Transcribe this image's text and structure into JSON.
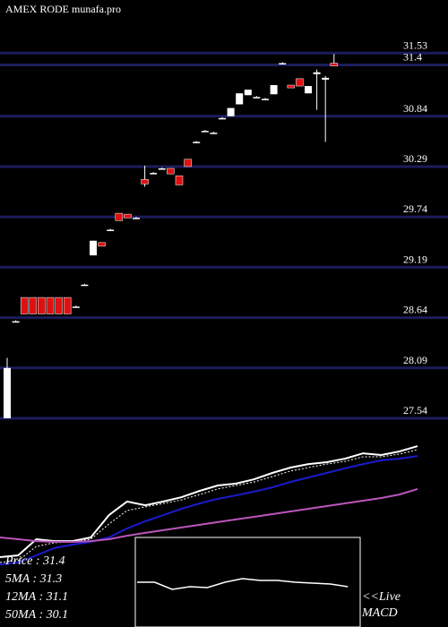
{
  "chart_data": [
    {
      "type": "candlestick",
      "title": "AMEX  RODE munafa.pro",
      "ylim": [
        27.53,
        32.11
      ],
      "yticks": [
        31.53,
        31.4,
        30.84,
        30.29,
        29.74,
        29.19,
        28.64,
        28.09,
        27.54
      ],
      "grid": true,
      "up_color": "#ffffff",
      "down_color": "#dd1111",
      "grid_color": "#1c1c5c",
      "open": [
        27.54,
        28.6,
        28.86,
        28.86,
        28.86,
        28.86,
        28.86,
        28.86,
        28.76,
        29.0,
        29.32,
        29.46,
        29.6,
        29.78,
        29.77,
        29.73,
        30.15,
        30.22,
        30.27,
        30.27,
        30.19,
        30.37,
        30.56,
        30.68,
        30.66,
        30.82,
        30.84,
        30.97,
        31.07,
        31.05,
        31.03,
        31.08,
        31.42,
        31.18,
        31.25,
        31.09,
        31.3,
        31.24,
        31.42
      ],
      "high": [
        28.2,
        28.61,
        28.86,
        28.86,
        28.86,
        28.86,
        28.86,
        28.86,
        28.77,
        29.01,
        29.48,
        29.46,
        29.61,
        29.78,
        29.77,
        29.74,
        30.3,
        30.23,
        30.28,
        30.27,
        30.19,
        30.37,
        30.57,
        30.69,
        30.67,
        30.83,
        30.93,
        31.09,
        31.13,
        31.06,
        31.04,
        31.18,
        31.43,
        31.18,
        31.25,
        31.17,
        31.35,
        31.28,
        31.52
      ],
      "low": [
        27.54,
        28.59,
        28.68,
        28.68,
        28.68,
        28.68,
        28.68,
        28.68,
        28.75,
        28.99,
        29.32,
        29.42,
        29.59,
        29.7,
        29.73,
        29.72,
        30.07,
        30.21,
        30.26,
        30.21,
        30.09,
        30.29,
        30.55,
        30.67,
        30.65,
        30.81,
        30.84,
        30.97,
        31.07,
        31.04,
        31.02,
        31.08,
        31.41,
        31.15,
        31.17,
        31.09,
        30.91,
        30.56,
        31.39
      ],
      "close": [
        28.09,
        28.6,
        28.68,
        28.68,
        28.68,
        28.68,
        28.68,
        28.68,
        28.76,
        29.0,
        29.48,
        29.42,
        29.6,
        29.7,
        29.73,
        29.73,
        30.1,
        30.22,
        30.27,
        30.21,
        30.09,
        30.29,
        30.56,
        30.68,
        30.66,
        30.82,
        30.93,
        31.09,
        31.13,
        31.05,
        31.03,
        31.18,
        31.42,
        31.15,
        31.17,
        31.17,
        31.32,
        31.26,
        31.39
      ]
    },
    {
      "type": "line",
      "ylim": [
        0,
        100
      ],
      "legend": [
        "Price   : 31.4",
        "5MA   : 31.3",
        "12MA : 31.1",
        "50MA : 30.1"
      ],
      "series": [
        {
          "color": "#ffffff",
          "style": "solid",
          "values": [
            33.9,
            34.8,
            42.6,
            41.7,
            41.7,
            43.5,
            54.3,
            60.9,
            59.1,
            60.9,
            63.0,
            66.1,
            68.7,
            69.6,
            71.7,
            74.8,
            77.4,
            79.1,
            80.0,
            81.7,
            84.3,
            83.5,
            85.2,
            87.8
          ]
        },
        {
          "color": "#ffffff",
          "style": "dotted",
          "values": [
            31.3,
            32.2,
            39.1,
            40.9,
            41.3,
            42.6,
            50.0,
            56.5,
            58.3,
            60.0,
            61.7,
            64.3,
            67.0,
            68.7,
            70.4,
            73.0,
            75.7,
            77.4,
            79.1,
            80.4,
            82.6,
            82.6,
            83.9,
            86.1
          ]
        },
        {
          "color": "#1a1acc",
          "style": "solid",
          "values": [
            30.4,
            31.3,
            34.8,
            38.3,
            40.0,
            41.3,
            43.5,
            47.8,
            51.3,
            54.3,
            57.4,
            60.0,
            62.2,
            63.9,
            65.7,
            67.8,
            70.4,
            72.6,
            74.8,
            77.0,
            79.1,
            80.9,
            81.7,
            83.0
          ]
        },
        {
          "color": "#bb55bb",
          "style": "solid",
          "values": [
            43.5,
            42.6,
            41.7,
            41.3,
            41.3,
            41.7,
            42.6,
            44.3,
            45.7,
            47.0,
            48.3,
            49.6,
            50.9,
            52.2,
            53.5,
            54.8,
            56.1,
            57.4,
            58.7,
            60.0,
            61.3,
            62.6,
            64.3,
            67.0
          ]
        }
      ]
    },
    {
      "type": "macd",
      "label": "<<Live\nMACD",
      "ylim": [
        0,
        100
      ],
      "series": [
        {
          "color": "#ffffff",
          "values": [
            50,
            50,
            42,
            45,
            44,
            50,
            54,
            52,
            52,
            50,
            49,
            48,
            45
          ]
        }
      ]
    }
  ]
}
